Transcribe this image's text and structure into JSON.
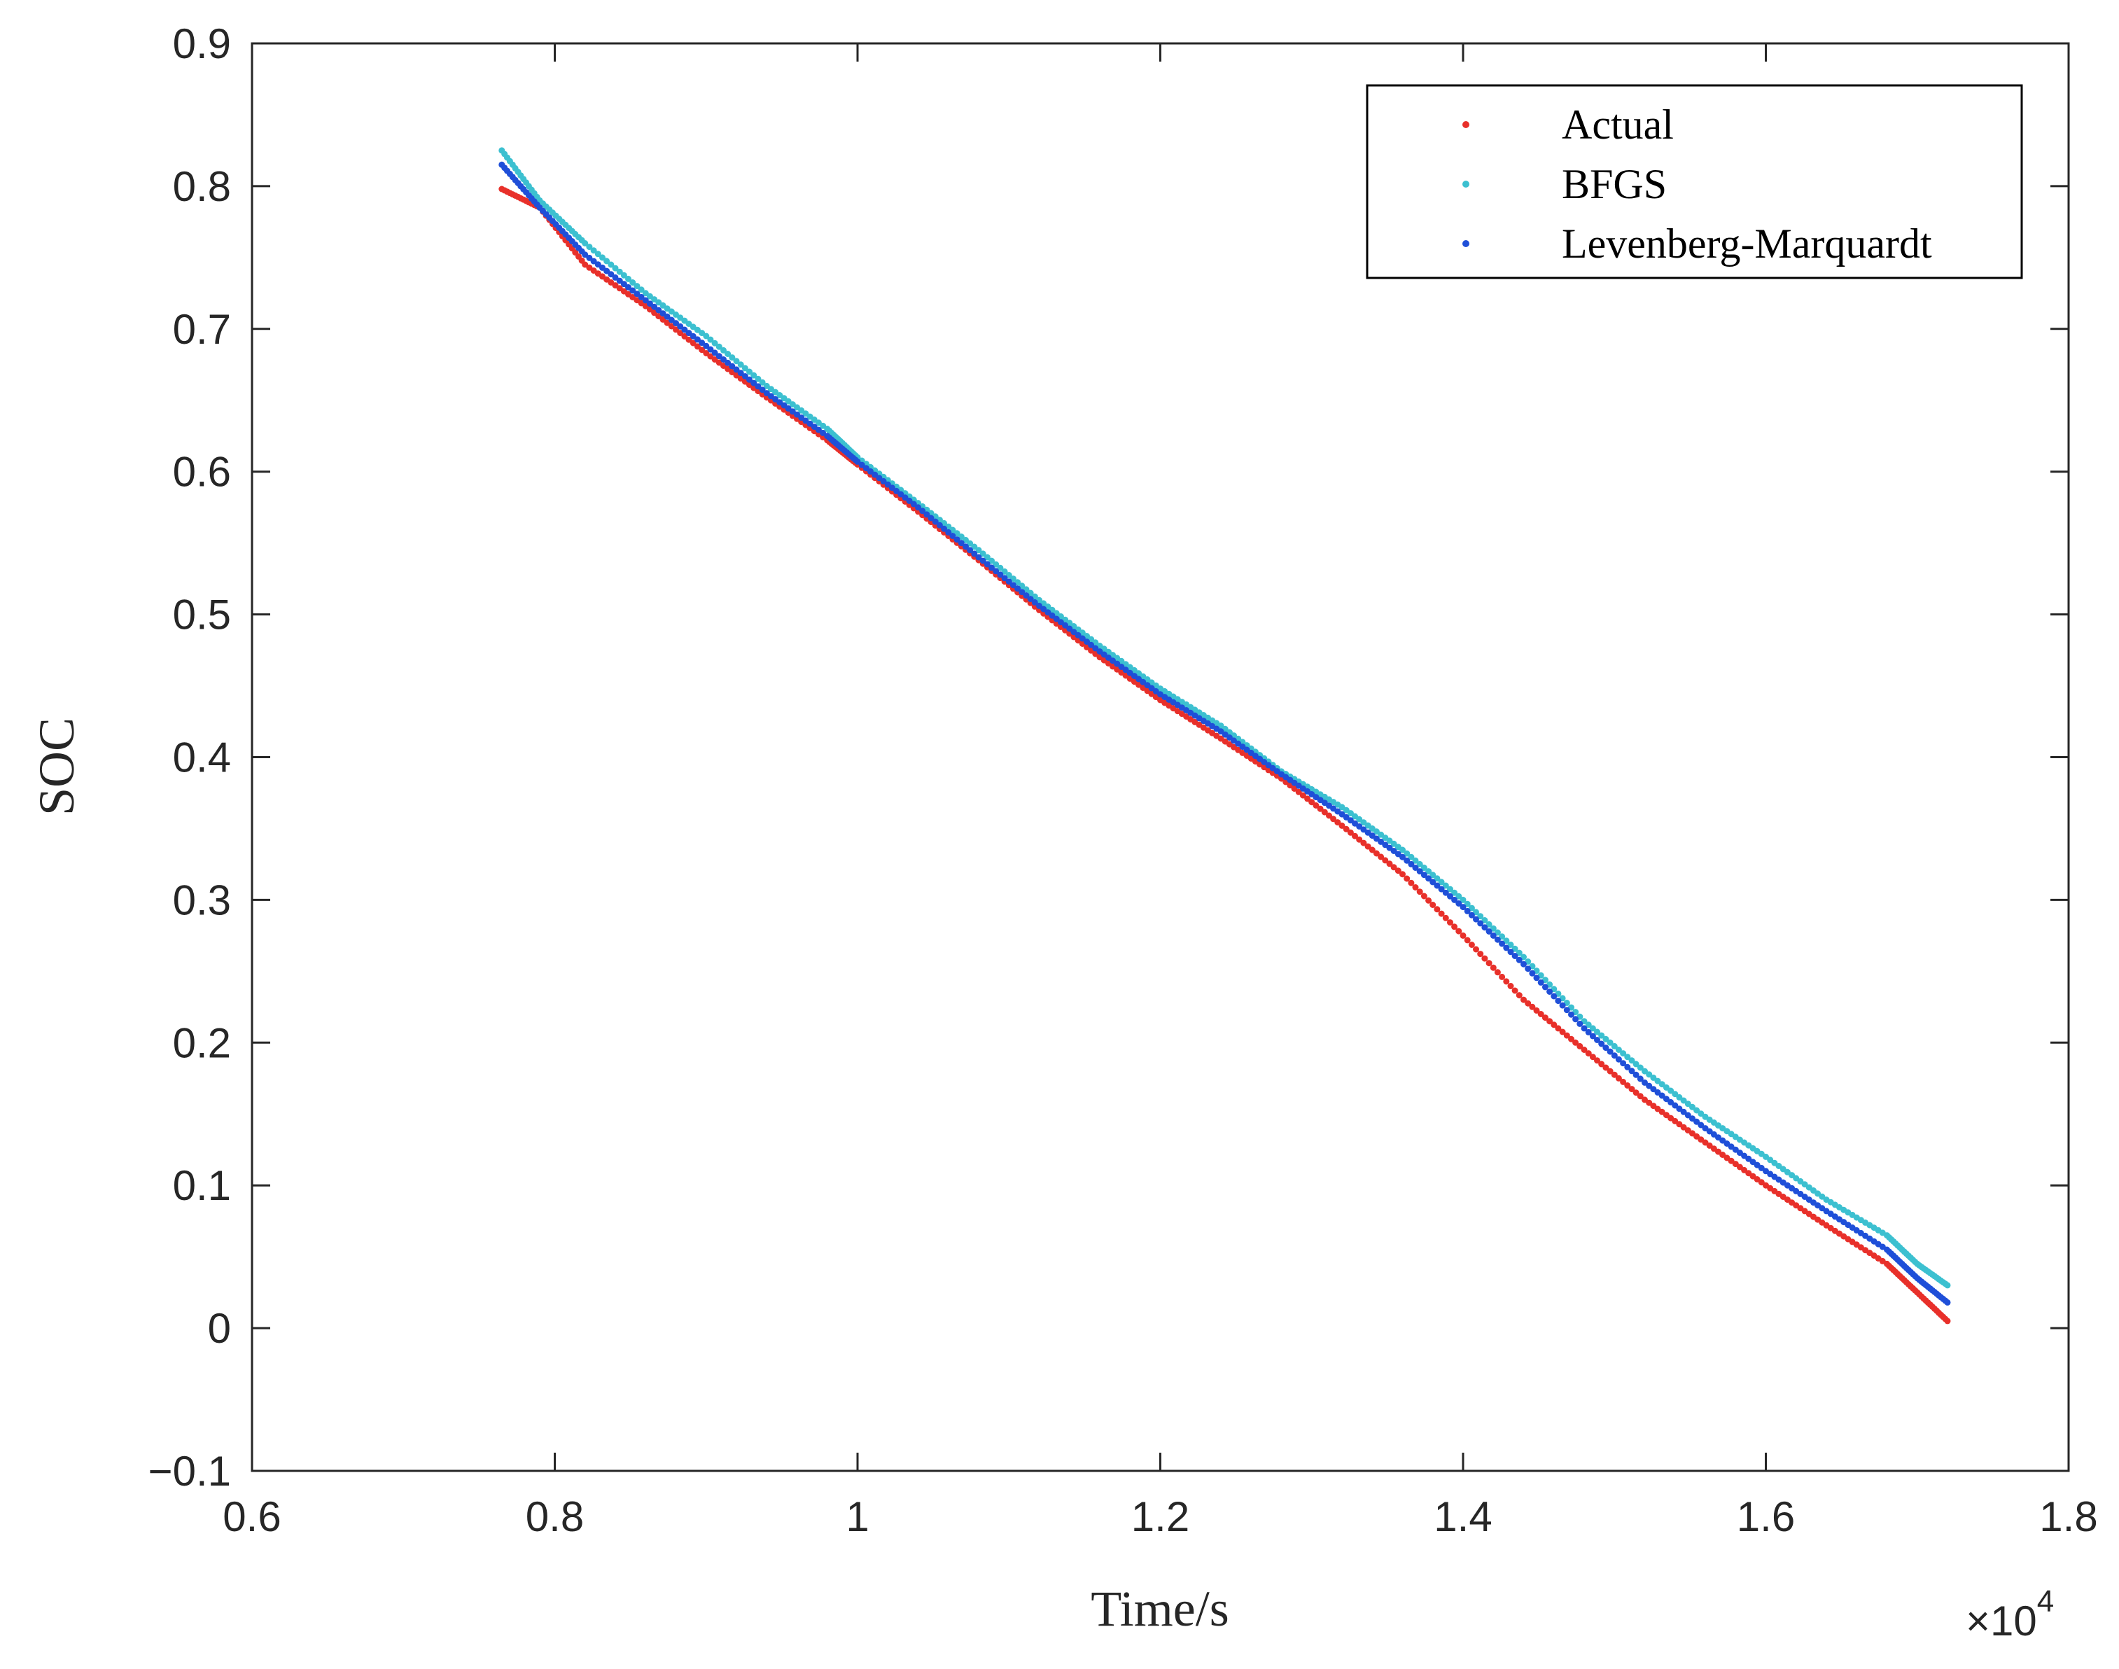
{
  "chart_data": {
    "type": "scatter",
    "title": "",
    "xlabel": "Time/s",
    "ylabel": "SOC",
    "x_multiplier_label": "×10",
    "x_multiplier_exponent": "4",
    "xlim": [
      0.6,
      1.8
    ],
    "ylim": [
      -0.1,
      0.9
    ],
    "x_ticks": [
      "0.6",
      "0.8",
      "1",
      "1.2",
      "1.4",
      "1.6",
      "1.8"
    ],
    "y_ticks": [
      "−0.1",
      "0",
      "0.1",
      "0.2",
      "0.3",
      "0.4",
      "0.5",
      "0.6",
      "0.7",
      "0.8",
      "0.9"
    ],
    "grid": false,
    "legend_position": "top-right",
    "series": [
      {
        "name": "Actual",
        "color": "#e8302a",
        "points": [
          [
            0.765,
            0.798
          ],
          [
            0.79,
            0.785
          ],
          [
            0.82,
            0.745
          ],
          [
            0.86,
            0.716
          ],
          [
            0.9,
            0.683
          ],
          [
            0.94,
            0.652
          ],
          [
            0.98,
            0.622
          ],
          [
            1.0,
            0.605
          ],
          [
            1.04,
            0.572
          ],
          [
            1.08,
            0.538
          ],
          [
            1.12,
            0.503
          ],
          [
            1.16,
            0.47
          ],
          [
            1.2,
            0.44
          ],
          [
            1.24,
            0.413
          ],
          [
            1.28,
            0.385
          ],
          [
            1.32,
            0.352
          ],
          [
            1.36,
            0.318
          ],
          [
            1.4,
            0.275
          ],
          [
            1.44,
            0.23
          ],
          [
            1.48,
            0.195
          ],
          [
            1.52,
            0.16
          ],
          [
            1.56,
            0.13
          ],
          [
            1.6,
            0.1
          ],
          [
            1.64,
            0.072
          ],
          [
            1.68,
            0.045
          ],
          [
            1.7,
            0.025
          ],
          [
            1.72,
            0.005
          ]
        ]
      },
      {
        "name": "BFGS",
        "color": "#3cc0d0",
        "points": [
          [
            0.765,
            0.825
          ],
          [
            0.79,
            0.79
          ],
          [
            0.82,
            0.76
          ],
          [
            0.86,
            0.725
          ],
          [
            0.9,
            0.695
          ],
          [
            0.94,
            0.66
          ],
          [
            0.98,
            0.63
          ],
          [
            1.0,
            0.61
          ],
          [
            1.04,
            0.578
          ],
          [
            1.08,
            0.545
          ],
          [
            1.12,
            0.51
          ],
          [
            1.16,
            0.478
          ],
          [
            1.2,
            0.448
          ],
          [
            1.24,
            0.422
          ],
          [
            1.28,
            0.39
          ],
          [
            1.32,
            0.365
          ],
          [
            1.36,
            0.335
          ],
          [
            1.4,
            0.3
          ],
          [
            1.44,
            0.26
          ],
          [
            1.48,
            0.215
          ],
          [
            1.52,
            0.18
          ],
          [
            1.56,
            0.148
          ],
          [
            1.6,
            0.12
          ],
          [
            1.64,
            0.09
          ],
          [
            1.68,
            0.065
          ],
          [
            1.7,
            0.045
          ],
          [
            1.72,
            0.03
          ]
        ]
      },
      {
        "name": "Levenberg-Marquardt",
        "color": "#1f4fd8",
        "points": [
          [
            0.765,
            0.815
          ],
          [
            0.79,
            0.785
          ],
          [
            0.82,
            0.752
          ],
          [
            0.86,
            0.72
          ],
          [
            0.9,
            0.688
          ],
          [
            0.94,
            0.655
          ],
          [
            0.98,
            0.625
          ],
          [
            1.0,
            0.607
          ],
          [
            1.04,
            0.575
          ],
          [
            1.08,
            0.54
          ],
          [
            1.12,
            0.506
          ],
          [
            1.16,
            0.474
          ],
          [
            1.2,
            0.444
          ],
          [
            1.24,
            0.418
          ],
          [
            1.28,
            0.388
          ],
          [
            1.32,
            0.36
          ],
          [
            1.36,
            0.33
          ],
          [
            1.4,
            0.295
          ],
          [
            1.44,
            0.255
          ],
          [
            1.48,
            0.21
          ],
          [
            1.52,
            0.172
          ],
          [
            1.56,
            0.14
          ],
          [
            1.6,
            0.11
          ],
          [
            1.64,
            0.082
          ],
          [
            1.68,
            0.055
          ],
          [
            1.7,
            0.035
          ],
          [
            1.72,
            0.018
          ]
        ]
      }
    ]
  }
}
